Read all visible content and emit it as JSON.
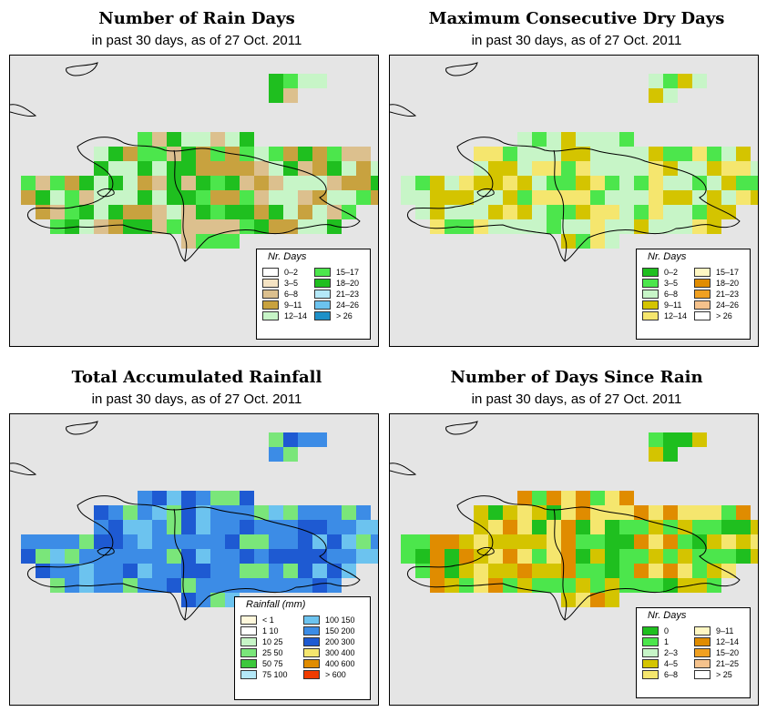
{
  "panels": [
    {
      "title": "Number of Rain Days",
      "subtitle": "in past 30 days, as of  27 Oct. 2011",
      "legend": {
        "title": "Nr. Days",
        "items": [
          {
            "label": "0–2",
            "color": "#ffffff"
          },
          {
            "label": "3–5",
            "color": "#f5e3c3"
          },
          {
            "label": "6–8",
            "color": "#dcc08e"
          },
          {
            "label": "9–11",
            "color": "#c8a23f"
          },
          {
            "label": "12–14",
            "color": "#c7f5c7"
          },
          {
            "label": "15–17",
            "color": "#4ce64c"
          },
          {
            "label": "18–20",
            "color": "#1fbf1f"
          },
          {
            "label": "21–23",
            "color": "#b4e8f8"
          },
          {
            "label": "24–26",
            "color": "#6cc3ef"
          },
          {
            "label": "> 26",
            "color": "#1e90c8"
          }
        ]
      },
      "grid_colors": [
        "#c7f5c7",
        "#4ce64c",
        "#1fbf1f",
        "#c8a23f",
        "#dcc08e"
      ],
      "ocean_color": "#e5e5e5"
    },
    {
      "title": "Maximum Consecutive Dry Days",
      "subtitle": "in past 30 days, as of  27 Oct. 2011",
      "legend": {
        "title": "Nr. Days",
        "items": [
          {
            "label": "0–2",
            "color": "#1fbf1f"
          },
          {
            "label": "3–5",
            "color": "#4ce64c"
          },
          {
            "label": "6–8",
            "color": "#c7f5c7"
          },
          {
            "label": "9–11",
            "color": "#d4c400"
          },
          {
            "label": "12–14",
            "color": "#f5e66e"
          },
          {
            "label": "15–17",
            "color": "#fff7c2"
          },
          {
            "label": "18–20",
            "color": "#e08c00"
          },
          {
            "label": "21–23",
            "color": "#f0a020"
          },
          {
            "label": "24–26",
            "color": "#f5c28c"
          },
          {
            "label": "> 26",
            "color": "#ffffff"
          }
        ]
      },
      "grid_colors": [
        "#c7f5c7",
        "#f5e66e",
        "#d4c400",
        "#4ce64c",
        "#c7f5c7"
      ],
      "ocean_color": "#e5e5e5"
    },
    {
      "title": "Total Accumulated Rainfall",
      "subtitle": "in past 30 days, as of  27 Oct. 2011",
      "legend": {
        "title": "Rainfall (mm)",
        "items": [
          {
            "label": "< 1",
            "color": "#fff8dc"
          },
          {
            "label": "1    10",
            "color": "#ffffff"
          },
          {
            "label": "10    25",
            "color": "#c7f5c7"
          },
          {
            "label": "25    50",
            "color": "#7ae67a"
          },
          {
            "label": "50    75",
            "color": "#3cc83c"
          },
          {
            "label": "75    100",
            "color": "#b4e8f8"
          },
          {
            "label": "100    150",
            "color": "#6cc3ef"
          },
          {
            "label": "150    200",
            "color": "#3c8ce6"
          },
          {
            "label": "200    300",
            "color": "#1e5ad2"
          },
          {
            "label": "300    400",
            "color": "#f5e66e"
          },
          {
            "label": "400    600",
            "color": "#e08c00"
          },
          {
            "label": "> 600",
            "color": "#f03c00"
          }
        ]
      },
      "grid_colors": [
        "#3c8ce6",
        "#6cc3ef",
        "#1e5ad2",
        "#7ae67a",
        "#3c8ce6"
      ],
      "ocean_color": "#e5e5e5"
    },
    {
      "title": "Number of Days Since Rain",
      "subtitle": "in past 30 days, as of  27 Oct. 2011",
      "legend": {
        "title": "Nr. Days",
        "items": [
          {
            "label": "0",
            "color": "#1fbf1f"
          },
          {
            "label": "1",
            "color": "#4ce64c"
          },
          {
            "label": "2–3",
            "color": "#c7f5c7"
          },
          {
            "label": "4–5",
            "color": "#d4c400"
          },
          {
            "label": "6–8",
            "color": "#f5e66e"
          },
          {
            "label": "9–11",
            "color": "#fff7c2"
          },
          {
            "label": "12–14",
            "color": "#e08c00"
          },
          {
            "label": "15–20",
            "color": "#f0a020"
          },
          {
            "label": "21–25",
            "color": "#f5c28c"
          },
          {
            "label": "> 25",
            "color": "#ffffff"
          }
        ]
      },
      "grid_colors": [
        "#d4c400",
        "#1fbf1f",
        "#f5e66e",
        "#e08c00",
        "#4ce64c"
      ],
      "ocean_color": "#e5e5e5"
    }
  ]
}
